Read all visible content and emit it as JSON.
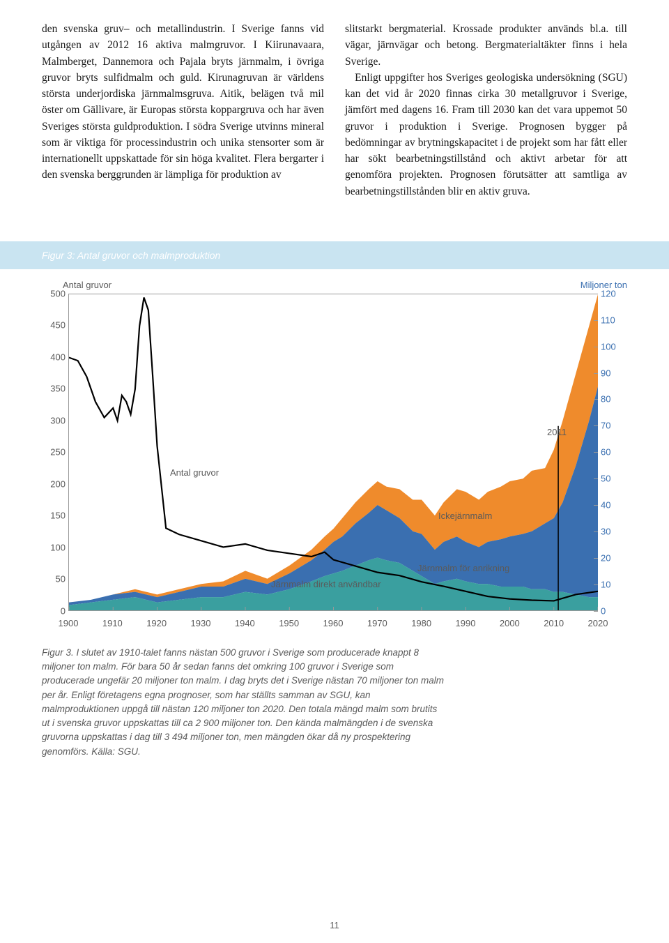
{
  "text": {
    "col1": "den svenska gruv– och metallindustrin. I Sverige fanns vid utgången av 2012 16 aktiva malmgruvor. I Kiirunavaara, Malmberget, Dannemora och Pajala bryts järnmalm, i övriga gruvor bryts sulfidmalm och guld. Kirunagruvan är världens största underjordiska järnmalmsgruva. Aitik, belägen två mil öster om Gällivare, är Europas största koppargruva och har även Sveriges största guldproduktion. I södra Sverige utvinns mineral som är viktiga för processindustrin och unika stensorter som är internationellt uppskattade för sin höga kvalitet. Flera bergarter i den svenska berggrunden är lämpliga för produktion av",
    "col2": "slitstarkt bergmaterial. Krossade produkter används bl.a. till vägar, järnvägar och betong. Bergmaterialtäkter finns i hela Sverige.\n   Enligt uppgifter hos Sveriges geologiska undersökning (SGU) kan det vid år 2020 finnas cirka 30 metallgruvor i Sverige, jämfört med dagens 16. Fram till 2030 kan det vara uppemot 50 gruvor i produktion i Sverige. Prognosen bygger på bedömningar av brytningskapacitet i de projekt som har fått eller har sökt bearbetningstillstånd och aktivt arbetar för att genomföra projekten. Prognosen förutsätter att samtliga av bearbetningstillstånden blir en aktiv gruva."
  },
  "banner": "Figur 3: Antal gruvor och malmproduktion",
  "chart": {
    "type": "line+area",
    "left_axis_title": "Antal gruvor",
    "right_axis_title": "Miljoner ton",
    "right_axis_color": "#3a6fb0",
    "xlim": [
      1900,
      2020
    ],
    "left_ylim": [
      0,
      500
    ],
    "right_ylim": [
      0,
      120
    ],
    "left_ticks": [
      0,
      50,
      100,
      150,
      200,
      250,
      300,
      350,
      400,
      450,
      500
    ],
    "right_ticks": [
      0,
      10,
      20,
      30,
      40,
      50,
      60,
      70,
      80,
      90,
      100,
      110,
      120
    ],
    "x_ticks": [
      1900,
      1910,
      1920,
      1930,
      1940,
      1950,
      1960,
      1970,
      1980,
      1990,
      2000,
      2010,
      2020
    ],
    "axis_color": "#999999",
    "label_color": "#5a5a5a",
    "label_fontsize": 13,
    "background_color": "#ffffff",
    "year_marker": {
      "x": 2011,
      "label": "2011"
    },
    "series_labels": {
      "mines": "Antal gruvor",
      "nonferrous": "Ickejärnmalm",
      "enrichment": "Järnmalm för anrikning",
      "direct": "Järnmalm direkt användbar"
    },
    "colors": {
      "mines_line": "#000000",
      "nonferrous": "#ef8b2c",
      "enrichment": "#3a6fb0",
      "direct": "#3a9f9f"
    },
    "mines_line": [
      [
        1900,
        400
      ],
      [
        1902,
        395
      ],
      [
        1904,
        370
      ],
      [
        1906,
        330
      ],
      [
        1908,
        305
      ],
      [
        1910,
        320
      ],
      [
        1911,
        300
      ],
      [
        1912,
        340
      ],
      [
        1913,
        330
      ],
      [
        1914,
        310
      ],
      [
        1915,
        350
      ],
      [
        1916,
        450
      ],
      [
        1917,
        495
      ],
      [
        1918,
        475
      ],
      [
        1919,
        370
      ],
      [
        1920,
        260
      ],
      [
        1922,
        130
      ],
      [
        1925,
        120
      ],
      [
        1930,
        110
      ],
      [
        1935,
        100
      ],
      [
        1940,
        105
      ],
      [
        1945,
        95
      ],
      [
        1950,
        90
      ],
      [
        1955,
        85
      ],
      [
        1958,
        92
      ],
      [
        1960,
        80
      ],
      [
        1965,
        70
      ],
      [
        1970,
        60
      ],
      [
        1975,
        55
      ],
      [
        1980,
        45
      ],
      [
        1985,
        38
      ],
      [
        1990,
        30
      ],
      [
        1995,
        22
      ],
      [
        2000,
        18
      ],
      [
        2005,
        16
      ],
      [
        2010,
        15
      ],
      [
        2015,
        25
      ],
      [
        2020,
        30
      ]
    ],
    "direct_top": [
      [
        1900,
        2
      ],
      [
        1905,
        3
      ],
      [
        1910,
        4
      ],
      [
        1915,
        5
      ],
      [
        1920,
        3
      ],
      [
        1925,
        4
      ],
      [
        1930,
        5
      ],
      [
        1935,
        5
      ],
      [
        1940,
        7
      ],
      [
        1945,
        6
      ],
      [
        1950,
        8
      ],
      [
        1955,
        11
      ],
      [
        1958,
        13
      ],
      [
        1960,
        14
      ],
      [
        1962,
        15
      ],
      [
        1965,
        17
      ],
      [
        1968,
        19
      ],
      [
        1970,
        20
      ],
      [
        1972,
        19
      ],
      [
        1975,
        18
      ],
      [
        1978,
        15
      ],
      [
        1980,
        13
      ],
      [
        1983,
        10
      ],
      [
        1985,
        11
      ],
      [
        1988,
        12
      ],
      [
        1990,
        11
      ],
      [
        1993,
        10
      ],
      [
        1995,
        10
      ],
      [
        1998,
        9
      ],
      [
        2000,
        9
      ],
      [
        2003,
        9
      ],
      [
        2005,
        8
      ],
      [
        2008,
        8
      ],
      [
        2010,
        7
      ],
      [
        2012,
        7
      ],
      [
        2015,
        6
      ],
      [
        2018,
        5
      ],
      [
        2020,
        5
      ]
    ],
    "enrichment_top": [
      [
        1900,
        3
      ],
      [
        1905,
        4
      ],
      [
        1910,
        6
      ],
      [
        1915,
        7
      ],
      [
        1920,
        5
      ],
      [
        1925,
        7
      ],
      [
        1930,
        9
      ],
      [
        1935,
        9
      ],
      [
        1940,
        12
      ],
      [
        1945,
        10
      ],
      [
        1950,
        14
      ],
      [
        1955,
        19
      ],
      [
        1958,
        23
      ],
      [
        1960,
        26
      ],
      [
        1962,
        28
      ],
      [
        1965,
        33
      ],
      [
        1968,
        37
      ],
      [
        1970,
        40
      ],
      [
        1972,
        38
      ],
      [
        1975,
        35
      ],
      [
        1978,
        30
      ],
      [
        1980,
        29
      ],
      [
        1983,
        23
      ],
      [
        1985,
        26
      ],
      [
        1988,
        28
      ],
      [
        1990,
        26
      ],
      [
        1993,
        24
      ],
      [
        1995,
        26
      ],
      [
        1998,
        27
      ],
      [
        2000,
        28
      ],
      [
        2003,
        29
      ],
      [
        2005,
        30
      ],
      [
        2008,
        33
      ],
      [
        2010,
        35
      ],
      [
        2012,
        41
      ],
      [
        2015,
        55
      ],
      [
        2018,
        72
      ],
      [
        2020,
        85
      ]
    ],
    "nonferrous_top": [
      [
        1900,
        3
      ],
      [
        1905,
        4
      ],
      [
        1910,
        6
      ],
      [
        1915,
        8
      ],
      [
        1920,
        6
      ],
      [
        1925,
        8
      ],
      [
        1930,
        10
      ],
      [
        1935,
        11
      ],
      [
        1940,
        15
      ],
      [
        1945,
        12
      ],
      [
        1950,
        17
      ],
      [
        1955,
        23
      ],
      [
        1958,
        28
      ],
      [
        1960,
        31
      ],
      [
        1962,
        35
      ],
      [
        1965,
        41
      ],
      [
        1968,
        46
      ],
      [
        1970,
        49
      ],
      [
        1972,
        47
      ],
      [
        1975,
        46
      ],
      [
        1978,
        42
      ],
      [
        1980,
        42
      ],
      [
        1983,
        36
      ],
      [
        1985,
        41
      ],
      [
        1988,
        46
      ],
      [
        1990,
        45
      ],
      [
        1993,
        42
      ],
      [
        1995,
        45
      ],
      [
        1998,
        47
      ],
      [
        2000,
        49
      ],
      [
        2003,
        50
      ],
      [
        2005,
        53
      ],
      [
        2008,
        54
      ],
      [
        2010,
        61
      ],
      [
        2012,
        72
      ],
      [
        2015,
        90
      ],
      [
        2018,
        108
      ],
      [
        2020,
        120
      ]
    ]
  },
  "caption": "Figur 3. I slutet av 1910-talet fanns nästan 500 gruvor i Sverige som producerade knappt 8 miljoner ton malm. För bara 50 år sedan fanns det omkring 100 gruvor i Sverige som producerade ungefär 20 miljoner ton malm. I dag bryts det i Sverige nästan 70 miljoner ton malm per år. Enligt företagens egna prognoser, som har ställts samman av SGU, kan malmproduktionen uppgå till nästan 120 miljoner ton 2020. Den totala mängd malm som brutits ut i svenska gruvor uppskattas till ca 2 900 miljoner ton. Den kända malmängden i de svenska gruvorna uppskattas i dag till 3 494 miljoner ton, men mängden ökar då ny prospektering genomförs. Källa: SGU.",
  "page_number": "11"
}
